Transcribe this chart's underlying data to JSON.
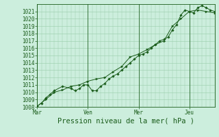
{
  "title": "",
  "xlabel": "Pression niveau de la mer( hPa )",
  "bg_color": "#cceedd",
  "plot_bg_color": "#cceedd",
  "grid_color": "#99ccaa",
  "line_color": "#1a5c1a",
  "ylim": [
    1008,
    1022
  ],
  "yticks": [
    1008,
    1009,
    1010,
    1011,
    1012,
    1013,
    1014,
    1015,
    1016,
    1017,
    1018,
    1019,
    1020,
    1021
  ],
  "day_labels": [
    "Mar",
    "Ven",
    "Mer",
    "Jeu"
  ],
  "vline_x": [
    0,
    3,
    6,
    9
  ],
  "xlim": [
    0,
    10.5
  ],
  "series1_x": [
    0,
    0.25,
    0.5,
    0.75,
    1.0,
    1.5,
    2.0,
    2.25,
    2.5,
    2.75,
    3.0,
    3.25,
    3.5,
    3.75,
    4.0,
    4.25,
    4.5,
    4.75,
    5.0,
    5.25,
    5.5,
    5.75,
    6.0,
    6.25,
    6.5,
    6.75,
    7.0,
    7.25,
    7.5,
    7.75,
    8.0,
    8.25,
    8.5,
    8.75,
    9.0,
    9.25,
    9.5,
    9.75,
    10.0,
    10.25,
    10.5
  ],
  "series1_y": [
    1008.1,
    1008.5,
    1009.2,
    1009.7,
    1010.2,
    1010.8,
    1010.5,
    1010.2,
    1010.5,
    1011.0,
    1011.0,
    1010.2,
    1010.2,
    1010.8,
    1011.2,
    1011.8,
    1012.2,
    1012.5,
    1013.0,
    1013.5,
    1014.0,
    1014.5,
    1015.0,
    1015.2,
    1015.5,
    1016.0,
    1016.5,
    1017.0,
    1017.2,
    1017.5,
    1018.5,
    1019.2,
    1020.5,
    1021.2,
    1021.0,
    1020.8,
    1021.5,
    1021.8,
    1021.5,
    1021.2,
    1021.0
  ],
  "series2_x": [
    0,
    0.5,
    1.0,
    1.5,
    2.0,
    2.5,
    3.0,
    3.5,
    4.0,
    4.5,
    5.0,
    5.5,
    6.0,
    6.5,
    7.0,
    7.5,
    8.0,
    8.5,
    9.0,
    9.5,
    10.0,
    10.5
  ],
  "series2_y": [
    1008.1,
    1009.0,
    1010.0,
    1010.3,
    1010.8,
    1011.0,
    1011.5,
    1011.8,
    1012.0,
    1012.8,
    1013.5,
    1014.8,
    1015.2,
    1015.8,
    1016.5,
    1017.0,
    1019.0,
    1020.0,
    1021.0,
    1021.2,
    1021.0,
    1020.8
  ],
  "tick_fontsize": 5.5,
  "label_fontsize": 7.5,
  "font_color": "#1a5c1a"
}
